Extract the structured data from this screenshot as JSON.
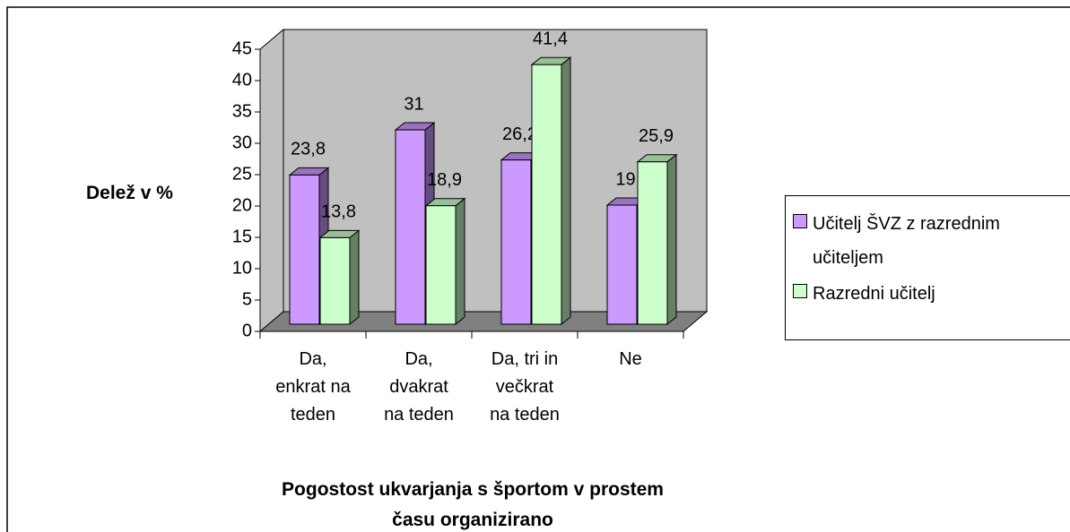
{
  "chart_data": {
    "type": "bar3d",
    "categories": [
      "Da, enkrat na teden",
      "Da, dvakrat na teden",
      "Da, tri in večkrat na teden",
      "Ne"
    ],
    "series": [
      {
        "name": "Učitelj ŠVZ z razrednim učiteljem",
        "color": "#cc99ff",
        "values": [
          23.8,
          31,
          26.2,
          19
        ],
        "value_labels": [
          "23,8",
          "31",
          "26,2",
          "19"
        ]
      },
      {
        "name": "Razredni učitelj",
        "color": "#ccffcc",
        "values": [
          13.8,
          18.9,
          41.4,
          25.9
        ],
        "value_labels": [
          "13,8",
          "18,9",
          "41,4",
          "25,9"
        ]
      }
    ],
    "y_label": "Delež v %",
    "x_label": "Pogostost ukvarjanja s športom v prostem času organizirano",
    "ylim": [
      0,
      45
    ],
    "yticks": [
      0,
      5,
      10,
      15,
      20,
      25,
      30,
      35,
      40,
      45
    ],
    "grid": false,
    "legend": "right"
  }
}
